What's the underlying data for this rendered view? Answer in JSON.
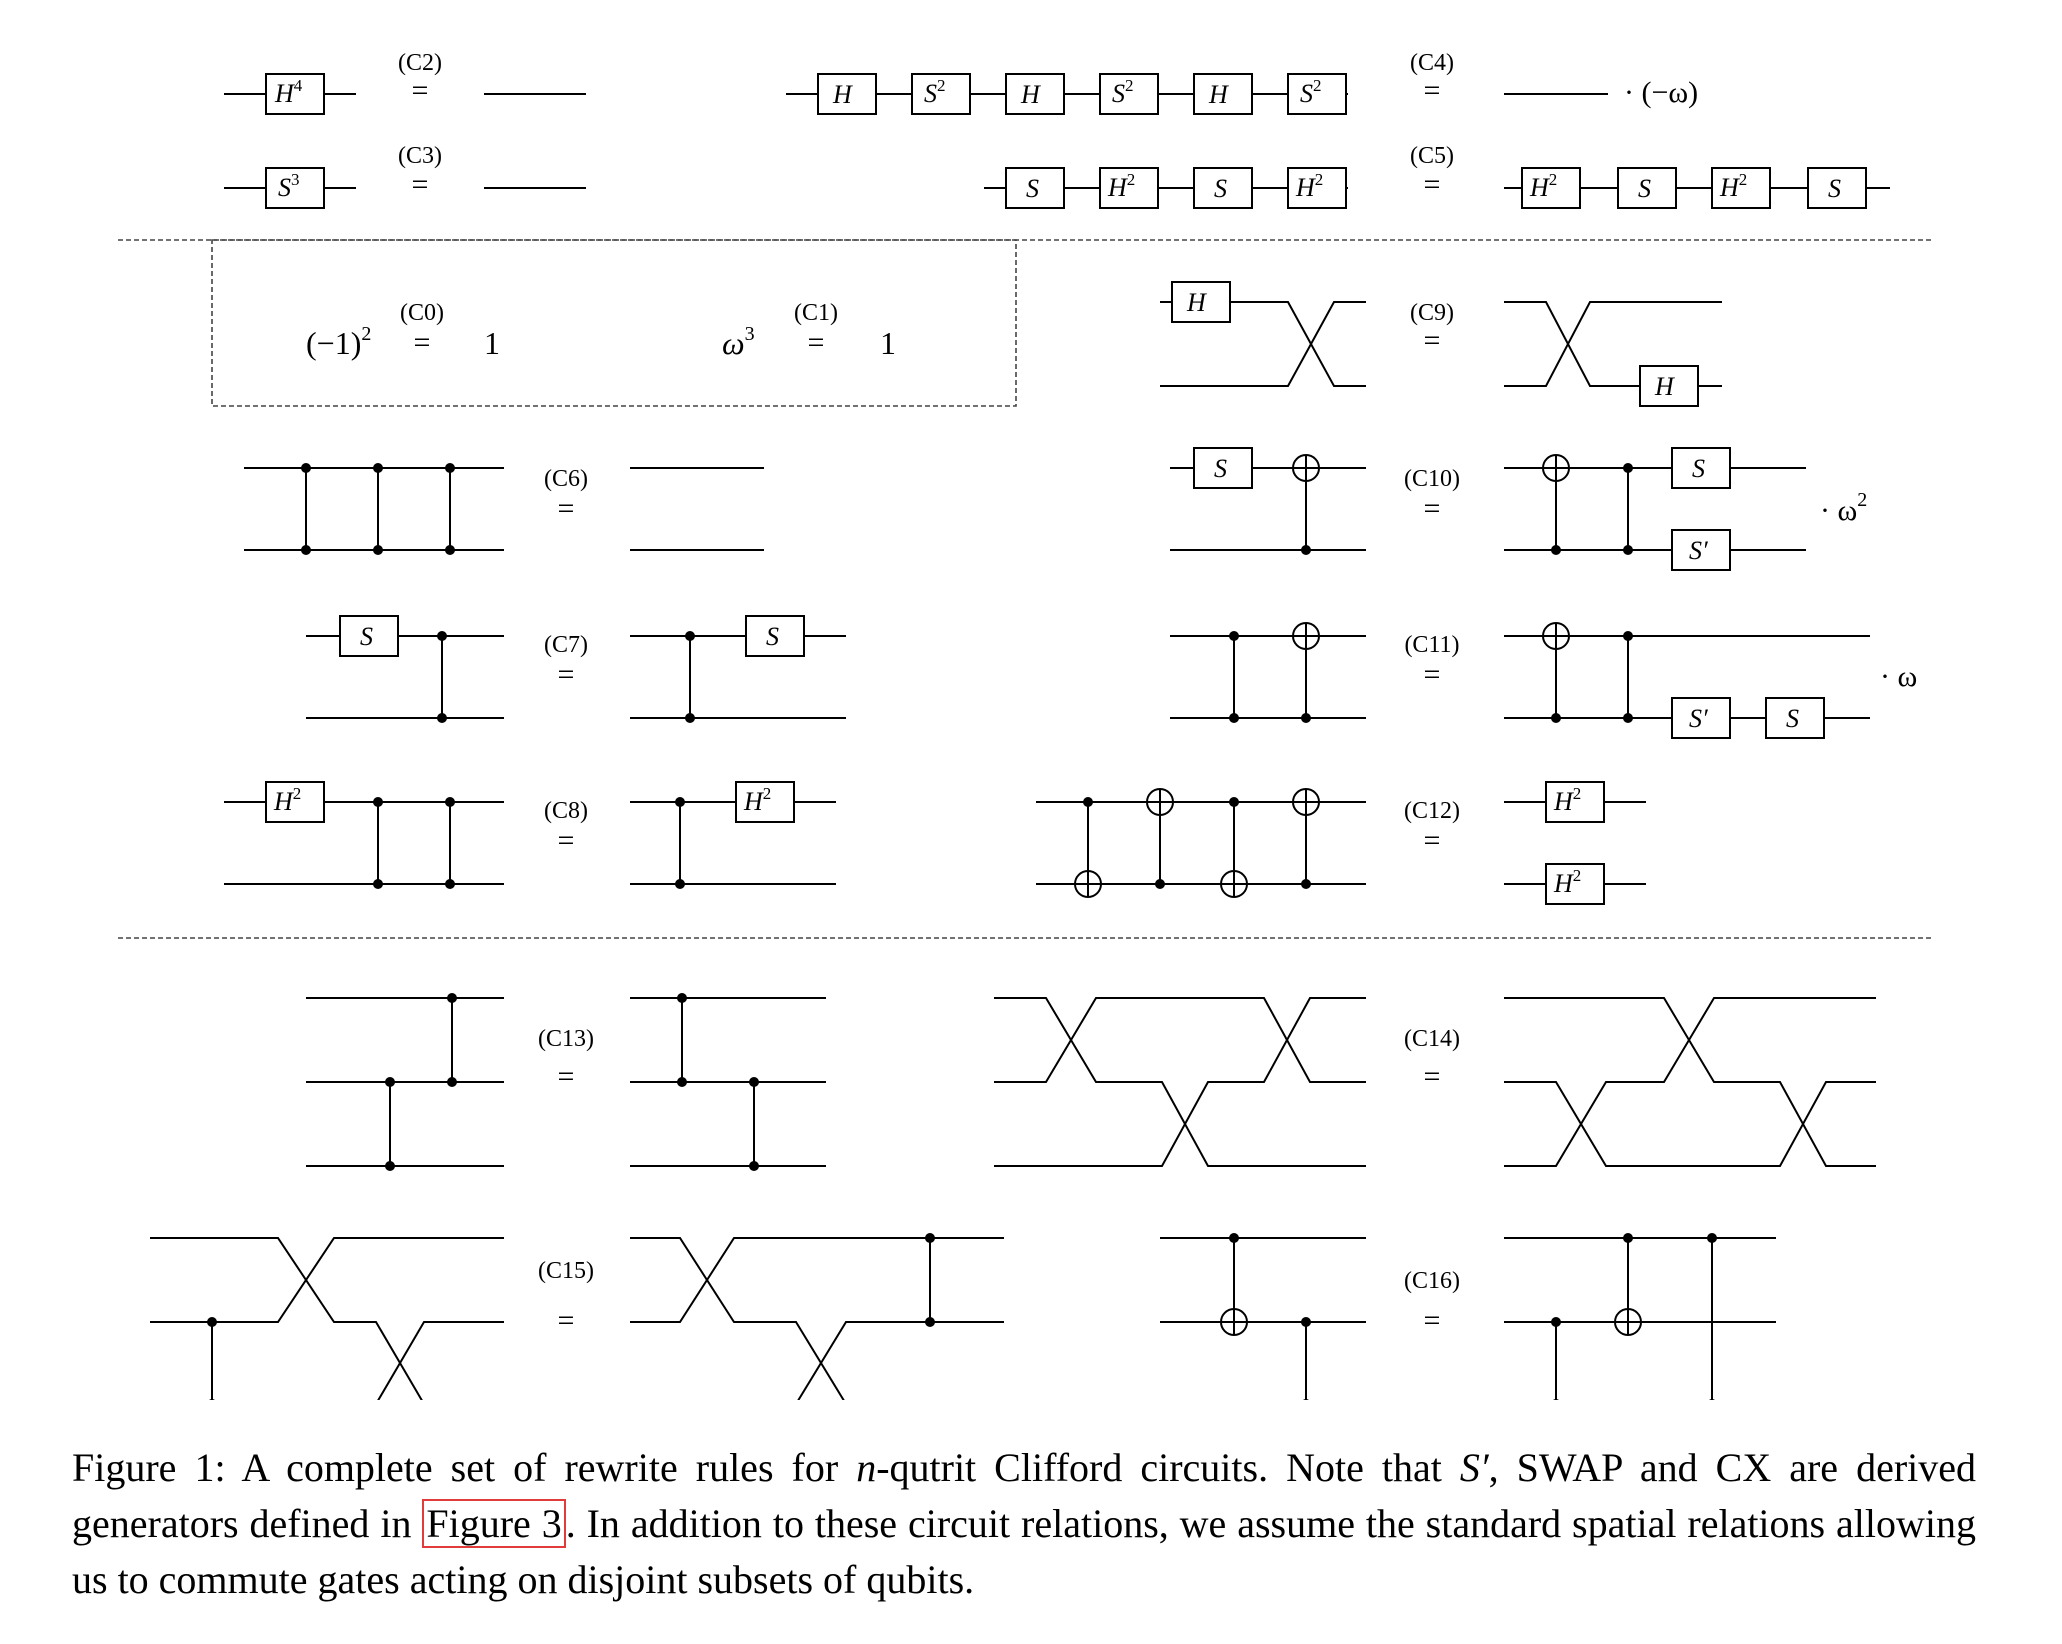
{
  "relations": {
    "c0": {
      "label": "(C0)",
      "lhs": "(−1)",
      "lhs_exp": "2",
      "rhs": "1"
    },
    "c1": {
      "label": "(C1)",
      "lhs": "ω",
      "lhs_exp": "3",
      "rhs": "1"
    },
    "c2": {
      "label": "(C2)",
      "gate": "H",
      "gate_exp": "4"
    },
    "c3": {
      "label": "(C3)",
      "gate": "S",
      "gate_exp": "3"
    },
    "c4": {
      "label": "(C4)",
      "gates": [
        "H",
        "S",
        "H",
        "S",
        "H",
        "S"
      ],
      "gate_exps": [
        "",
        "2",
        "",
        "2",
        "",
        "2"
      ],
      "scalar": "· (−ω)"
    },
    "c5": {
      "label": "(C5)",
      "lhs_gates": [
        "S",
        "H",
        "S",
        "H"
      ],
      "lhs_exps": [
        "",
        "2",
        "",
        "2"
      ],
      "rhs_gates": [
        "H",
        "S",
        "H",
        "S"
      ],
      "rhs_exps": [
        "2",
        "",
        "2",
        ""
      ]
    },
    "c6": {
      "label": "(C6)"
    },
    "c7": {
      "label": "(C7)",
      "gate": "S"
    },
    "c8": {
      "label": "(C8)",
      "gate": "H",
      "gate_exp": "2"
    },
    "c9": {
      "label": "(C9)",
      "gate": "H"
    },
    "c10": {
      "label": "(C10)",
      "lhs_gate": "S",
      "rhs_gates": [
        "S",
        "S′"
      ],
      "scalar": "· ω",
      "scalar_exp": "2"
    },
    "c11": {
      "label": "(C11)",
      "rhs_gates": [
        "S′",
        "S"
      ],
      "scalar": "· ω"
    },
    "c12": {
      "label": "(C12)",
      "gate": "H",
      "gate_exp": "2"
    },
    "c13": {
      "label": "(C13)"
    },
    "c14": {
      "label": "(C14)"
    },
    "c15": {
      "label": "(C15)"
    },
    "c16": {
      "label": "(C16)"
    }
  },
  "equals_sign": "=",
  "caption": {
    "prefix": "Figure 1:  A complete set of rewrite rules for ",
    "n": "n",
    "part2": "-qutrit Clifford circuits.  Note that ",
    "s_prime": "S′",
    "part3": ", SWAP and CX are derived generators defined in ",
    "link": "Figure 3",
    "part4": ".  In addition to these circuit relations, we assume the standard spatial relations allowing us to commute gates acting on disjoint subsets of qubits."
  }
}
